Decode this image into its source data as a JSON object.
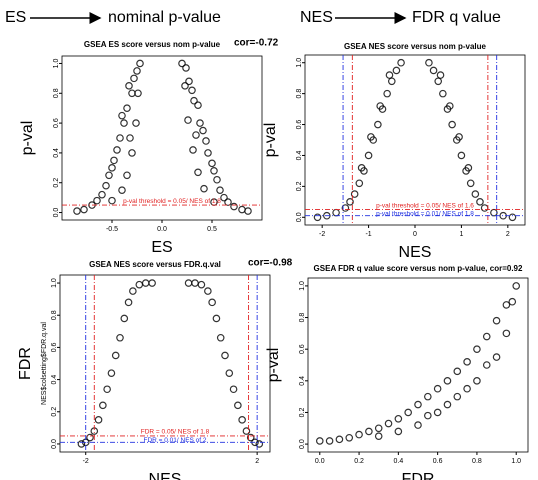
{
  "chart_data": [
    {
      "type": "scatter",
      "header": [
        "ES",
        "nominal p-value"
      ],
      "title": "GSEA ES score versus nom p-value",
      "cor": "cor=-0.72",
      "xlabel": "ES",
      "ylabel": "p-val",
      "xlim": [
        -1,
        1
      ],
      "ylim": [
        -0.05,
        1.05
      ],
      "xticks": [
        -0.5,
        {
          "value": 0,
          "label": "0.0"
        },
        0.5
      ],
      "yticks": [
        {
          "value": 0,
          "label": "0.0"
        },
        {
          "value": 0.2,
          "label": "0.2"
        },
        {
          "value": 0.4,
          "label": "0.4"
        },
        {
          "value": 0.6,
          "label": "0.6"
        },
        {
          "value": 0.8,
          "label": "0.8"
        },
        {
          "value": 1,
          "label": "1.0"
        }
      ],
      "hlines": [
        {
          "value": 0.05,
          "color": "#e02020",
          "label": "p-val threshold = 0.05/ NES of 1.8"
        }
      ],
      "vlines": [],
      "series": [
        {
          "color": "#000000",
          "x": [
            -0.22,
            -0.25,
            -0.28,
            -0.3,
            -0.33,
            -0.35,
            -0.38,
            -0.4,
            -0.42,
            -0.45,
            -0.48,
            -0.5,
            -0.53,
            -0.56,
            -0.6,
            -0.65,
            -0.7,
            -0.78,
            -0.85,
            -0.26,
            -0.3,
            -0.35,
            -0.4,
            -0.5,
            -0.24,
            -0.32,
            0.2,
            0.24,
            0.27,
            0.3,
            0.32,
            0.36,
            0.38,
            0.41,
            0.44,
            0.46,
            0.5,
            0.52,
            0.55,
            0.58,
            0.62,
            0.66,
            0.72,
            0.8,
            0.86,
            0.26,
            0.31,
            0.36,
            0.42,
            0.52,
            0.23,
            0.34
          ],
          "y": [
            1.0,
            0.95,
            0.9,
            0.8,
            0.85,
            0.7,
            0.6,
            0.65,
            0.5,
            0.42,
            0.35,
            0.3,
            0.25,
            0.18,
            0.12,
            0.08,
            0.05,
            0.02,
            0.01,
            0.6,
            0.4,
            0.25,
            0.15,
            0.08,
            0.8,
            0.5,
            1.0,
            0.97,
            0.88,
            0.82,
            0.75,
            0.72,
            0.6,
            0.55,
            0.48,
            0.4,
            0.33,
            0.28,
            0.22,
            0.15,
            0.1,
            0.07,
            0.04,
            0.02,
            0.01,
            0.62,
            0.42,
            0.27,
            0.16,
            0.07,
            0.85,
            0.52
          ]
        }
      ]
    },
    {
      "type": "scatter",
      "header": [
        "NES",
        "FDR q value"
      ],
      "title": "GSEA NES score versus nom p-value",
      "xlabel": "NES",
      "ylabel": "p-val",
      "xlim": [
        -2.37,
        2.37
      ],
      "ylim": [
        -0.05,
        1.05
      ],
      "xticks": [
        -2,
        -1,
        0,
        1,
        2
      ],
      "yticks": [
        {
          "value": 0,
          "label": "0.0"
        },
        {
          "value": 0.2,
          "label": "0.2"
        },
        {
          "value": 0.4,
          "label": "0.4"
        },
        {
          "value": 0.6,
          "label": "0.6"
        },
        {
          "value": 0.8,
          "label": "0.8"
        },
        {
          "value": 1,
          "label": "1.0"
        }
      ],
      "hlines": [
        {
          "value": 0.05,
          "color": "#e02020",
          "label": "p-val threshold = 0.05/ NES of 1.6"
        },
        {
          "value": 0.01,
          "color": "#2030e0",
          "label": "p-val threshold = 0.01/ NES of 1.8"
        }
      ],
      "vlines": [
        {
          "value": -1.35,
          "color": "#e02020"
        },
        {
          "value": 1.57,
          "color": "#e02020"
        },
        {
          "value": -1.55,
          "color": "#2030e0"
        },
        {
          "value": 1.76,
          "color": "#2030e0"
        }
      ],
      "series": [
        {
          "color": "#000000",
          "x": [
            -0.3,
            -0.4,
            -0.5,
            -0.6,
            -0.7,
            -0.8,
            -0.9,
            -1.0,
            -1.1,
            -1.2,
            -1.3,
            -1.4,
            -1.5,
            -1.7,
            -1.9,
            -2.1,
            -0.55,
            -0.75,
            -0.95,
            -1.15,
            0.3,
            0.4,
            0.5,
            0.6,
            0.7,
            0.8,
            0.9,
            1.0,
            1.1,
            1.2,
            1.3,
            1.4,
            1.5,
            1.7,
            1.9,
            2.1,
            0.55,
            0.75,
            0.95,
            1.15
          ],
          "y": [
            1.0,
            0.95,
            0.88,
            0.8,
            0.7,
            0.6,
            0.5,
            0.4,
            0.3,
            0.22,
            0.15,
            0.1,
            0.06,
            0.03,
            0.01,
            0.0,
            0.92,
            0.72,
            0.52,
            0.32,
            1.0,
            0.95,
            0.88,
            0.8,
            0.7,
            0.6,
            0.5,
            0.4,
            0.3,
            0.22,
            0.15,
            0.1,
            0.06,
            0.03,
            0.01,
            0.0,
            0.92,
            0.72,
            0.52,
            0.32
          ]
        }
      ]
    },
    {
      "type": "scatter",
      "title": "GSEA NES score versus FDR.q.val",
      "cor": "cor=-0.98",
      "xlabel": "NES",
      "ylabel": "FDR",
      "ylabel2": "NES$colsetting$FDR.q.val",
      "xlim": [
        -2.6,
        2.3
      ],
      "ylim": [
        -0.05,
        1.05
      ],
      "xticks": [
        -2,
        2
      ],
      "yticks": [
        {
          "value": 0,
          "label": "0.0"
        },
        {
          "value": 0.2,
          "label": "0.2"
        },
        {
          "value": 0.4,
          "label": "0.4"
        },
        {
          "value": 0.6,
          "label": "0.6"
        },
        {
          "value": 0.8,
          "label": "0.8"
        },
        {
          "value": 1,
          "label": "1.0"
        }
      ],
      "hlines": [
        {
          "value": 0.05,
          "color": "#e02020",
          "label": "FDR = 0.05/ NES of 1.8"
        },
        {
          "value": 0.01,
          "color": "#2030e0",
          "label": "FDR = 0.01/ NES of 2"
        }
      ],
      "vlines": [
        {
          "value": -1.8,
          "color": "#e02020"
        },
        {
          "value": 1.8,
          "color": "#e02020"
        },
        {
          "value": -2,
          "color": "#2030e0"
        },
        {
          "value": 2,
          "color": "#2030e0"
        }
      ],
      "series": [
        {
          "color": "#000000",
          "x": [
            -0.45,
            -0.6,
            -0.75,
            -0.9,
            -1.0,
            -1.1,
            -1.2,
            -1.3,
            -1.4,
            -1.5,
            -1.6,
            -1.7,
            -1.8,
            -1.9,
            -2.0,
            -2.1,
            0.4,
            0.55,
            0.7,
            0.85,
            0.95,
            1.05,
            1.15,
            1.25,
            1.35,
            1.45,
            1.55,
            1.65,
            1.75,
            1.85,
            1.95,
            2.05
          ],
          "y": [
            1.0,
            1.0,
            0.99,
            0.95,
            0.88,
            0.78,
            0.66,
            0.55,
            0.44,
            0.34,
            0.24,
            0.15,
            0.08,
            0.04,
            0.01,
            0.0,
            1.0,
            1.0,
            0.99,
            0.95,
            0.88,
            0.78,
            0.66,
            0.55,
            0.44,
            0.34,
            0.24,
            0.15,
            0.08,
            0.04,
            0.01,
            0.0
          ]
        }
      ]
    },
    {
      "type": "scatter",
      "title": "GSEA FDR q value score versus nom p-value, cor=0.92",
      "xlabel": "FDR",
      "ylabel": "p-val",
      "xlim": [
        -0.06,
        1.06
      ],
      "ylim": [
        -0.05,
        1.05
      ],
      "xticks": [
        {
          "value": 0,
          "label": "0.0"
        },
        {
          "value": 0.2,
          "label": "0.2"
        },
        {
          "value": 0.4,
          "label": "0.4"
        },
        {
          "value": 0.6,
          "label": "0.6"
        },
        {
          "value": 0.8,
          "label": "0.8"
        },
        {
          "value": 1,
          "label": "1.0"
        }
      ],
      "yticks": [
        {
          "value": 0,
          "label": "0.0"
        },
        {
          "value": 0.2,
          "label": "0.2"
        },
        {
          "value": 0.4,
          "label": "0.4"
        },
        {
          "value": 0.6,
          "label": "0.6"
        },
        {
          "value": 0.8,
          "label": "0.8"
        },
        {
          "value": 1,
          "label": "1.0"
        }
      ],
      "hlines": [],
      "vlines": [],
      "series": [
        {
          "color": "#000000",
          "x": [
            0.0,
            0.05,
            0.1,
            0.15,
            0.2,
            0.25,
            0.3,
            0.35,
            0.4,
            0.45,
            0.5,
            0.55,
            0.6,
            0.65,
            0.7,
            0.75,
            0.8,
            0.85,
            0.9,
            0.95,
            1.0,
            0.3,
            0.4,
            0.5,
            0.6,
            0.7,
            0.8,
            0.9,
            0.55,
            0.65,
            0.75,
            0.85,
            0.95,
            0.98
          ],
          "y": [
            0.02,
            0.02,
            0.03,
            0.04,
            0.06,
            0.08,
            0.1,
            0.13,
            0.16,
            0.2,
            0.25,
            0.3,
            0.35,
            0.4,
            0.46,
            0.52,
            0.6,
            0.68,
            0.78,
            0.88,
            1.0,
            0.05,
            0.08,
            0.12,
            0.2,
            0.3,
            0.4,
            0.55,
            0.18,
            0.25,
            0.35,
            0.5,
            0.7,
            0.9
          ]
        }
      ]
    }
  ]
}
